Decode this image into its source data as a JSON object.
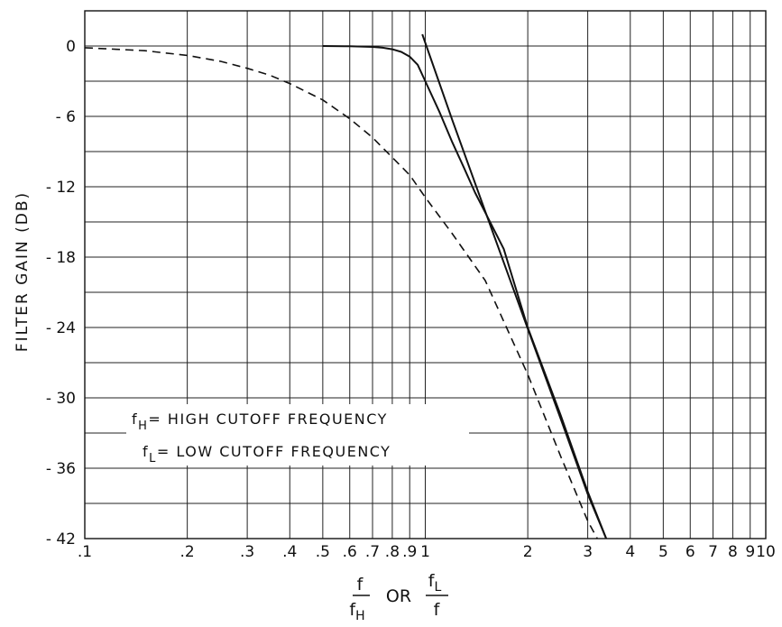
{
  "chart_data": {
    "type": "line",
    "x_scale": "log",
    "xlim": [
      0.1,
      10
    ],
    "ylim": [
      -42,
      3
    ],
    "x_ticks": [
      {
        "value": 0.1,
        "label": ".1"
      },
      {
        "value": 0.2,
        "label": ".2"
      },
      {
        "value": 0.3,
        "label": ".3"
      },
      {
        "value": 0.4,
        "label": ".4"
      },
      {
        "value": 0.5,
        "label": ".5"
      },
      {
        "value": 0.6,
        "label": ".6"
      },
      {
        "value": 0.7,
        "label": ".7"
      },
      {
        "value": 0.8,
        "label": ".8"
      },
      {
        "value": 0.9,
        "label": ".9"
      },
      {
        "value": 1,
        "label": "1"
      },
      {
        "value": 2,
        "label": "2"
      },
      {
        "value": 3,
        "label": "3"
      },
      {
        "value": 4,
        "label": "4"
      },
      {
        "value": 5,
        "label": "5"
      },
      {
        "value": 6,
        "label": "6"
      },
      {
        "value": 7,
        "label": "7"
      },
      {
        "value": 8,
        "label": "8"
      },
      {
        "value": 9,
        "label": "9"
      },
      {
        "value": 10,
        "label": "10"
      }
    ],
    "y_ticks": [
      {
        "value": 0,
        "label": "0"
      },
      {
        "value": -6,
        "label": "- 6"
      },
      {
        "value": -12,
        "label": "- 12"
      },
      {
        "value": -18,
        "label": "- 18"
      },
      {
        "value": -24,
        "label": "- 24"
      },
      {
        "value": -30,
        "label": "- 30"
      },
      {
        "value": -36,
        "label": "- 36"
      },
      {
        "value": -42,
        "label": "- 42"
      }
    ],
    "y_minor_gridlines": [
      3,
      -3,
      -9,
      -15,
      -21,
      -27,
      -33,
      -39
    ],
    "ylabel": "FILTER GAIN (DB)",
    "xlabel": {
      "prefix": "f",
      "prefix_den": "f",
      "prefix_den_sub": "H",
      "or": "OR",
      "suffix": "f",
      "suffix_sub": "L",
      "suffix_den": "f"
    },
    "grid": true,
    "series": [
      {
        "style": "solid",
        "points": [
          [
            0.5,
            0
          ],
          [
            0.6,
            -0.02
          ],
          [
            0.7,
            -0.08
          ],
          [
            0.75,
            -0.15
          ],
          [
            0.8,
            -0.28
          ],
          [
            0.85,
            -0.5
          ],
          [
            0.9,
            -0.9
          ],
          [
            0.95,
            -1.6
          ],
          [
            1.0,
            -3.0
          ],
          [
            1.1,
            -5.6
          ],
          [
            1.2,
            -8.2
          ],
          [
            1.3,
            -10.4
          ],
          [
            1.4,
            -12.5
          ],
          [
            1.5,
            -14.2
          ],
          [
            1.7,
            -17.3
          ],
          [
            2.0,
            -24.0
          ],
          [
            2.5,
            -31.5
          ],
          [
            3.0,
            -38.0
          ],
          [
            3.4,
            -42.0
          ]
        ]
      },
      {
        "style": "solid",
        "points": [
          [
            0.98,
            1.0
          ],
          [
            1.2,
            -6.3
          ],
          [
            1.5,
            -14.1
          ],
          [
            2.0,
            -24.1
          ],
          [
            2.5,
            -31.8
          ],
          [
            3.0,
            -38.2
          ],
          [
            3.4,
            -42.0
          ]
        ]
      },
      {
        "style": "dashed",
        "points": [
          [
            0.1,
            -0.15
          ],
          [
            0.15,
            -0.4
          ],
          [
            0.2,
            -0.8
          ],
          [
            0.25,
            -1.3
          ],
          [
            0.3,
            -1.9
          ],
          [
            0.35,
            -2.5
          ],
          [
            0.4,
            -3.2
          ],
          [
            0.5,
            -4.6
          ],
          [
            0.6,
            -6.2
          ],
          [
            0.7,
            -7.8
          ],
          [
            0.8,
            -9.5
          ],
          [
            0.9,
            -11.0
          ],
          [
            1.0,
            -12.9
          ],
          [
            1.2,
            -16.0
          ],
          [
            1.5,
            -20.0
          ],
          [
            2.0,
            -28.0
          ],
          [
            2.5,
            -35.0
          ],
          [
            3.0,
            -40.5
          ],
          [
            3.2,
            -42.0
          ]
        ]
      }
    ],
    "legend": [
      {
        "symbol": "f",
        "sub": "H",
        "text": "= HIGH CUTOFF FREQUENCY"
      },
      {
        "symbol": "f",
        "sub": "L",
        "text": "= LOW CUTOFF FREQUENCY"
      }
    ]
  }
}
